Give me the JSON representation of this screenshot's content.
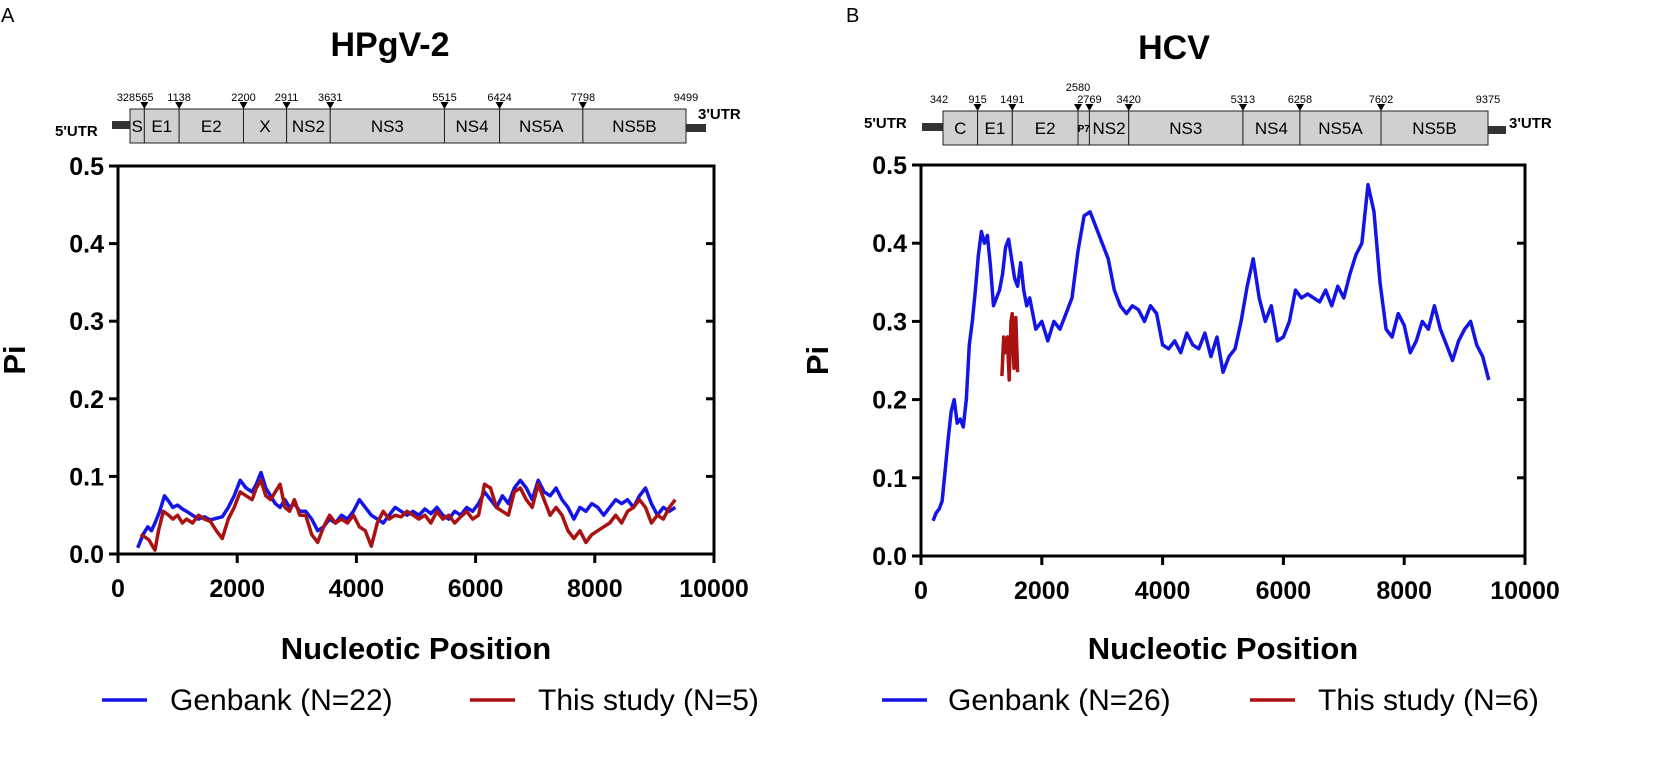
{
  "colors": {
    "genbank": "#1414e6",
    "this_study": "#aa1111",
    "gene_fill": "#d0d0d0",
    "utr": "#333333"
  },
  "chart_data": [
    {
      "panel": "A",
      "title": "HPgV-2",
      "type": "line",
      "xlabel": "Nucleotic Position",
      "ylabel": "Pi",
      "xlim": [
        0,
        10000
      ],
      "ylim": [
        0,
        0.5
      ],
      "xticks": [
        0,
        2000,
        4000,
        6000,
        8000,
        10000
      ],
      "yticks": [
        0.0,
        0.1,
        0.2,
        0.3,
        0.4,
        0.5
      ],
      "xtick_labels": [
        "0",
        "2000",
        "4000",
        "6000",
        "8000",
        "10000"
      ],
      "ytick_labels": [
        "0.0",
        "0.1",
        "0.2",
        "0.3",
        "0.4",
        "0.5"
      ],
      "genome": {
        "utr5": "5'UTR",
        "utr3": "3'UTR",
        "start": 328,
        "end": 9499,
        "genes": [
          {
            "label": "S",
            "start": 328,
            "end": 565
          },
          {
            "label": "E1",
            "start": 565,
            "end": 1138
          },
          {
            "label": "E2",
            "start": 1138,
            "end": 2200
          },
          {
            "label": "X",
            "start": 2200,
            "end": 2911
          },
          {
            "label": "NS2",
            "start": 2911,
            "end": 3631
          },
          {
            "label": "NS3",
            "start": 3631,
            "end": 5515
          },
          {
            "label": "NS4",
            "start": 5515,
            "end": 6424
          },
          {
            "label": "NS5A",
            "start": 6424,
            "end": 7798
          },
          {
            "label": "NS5B",
            "start": 7798,
            "end": 9499
          }
        ],
        "positions": [
          {
            "label": "328",
            "pos": 328,
            "marker": false
          },
          {
            "label": "565",
            "pos": 565,
            "marker": true
          },
          {
            "label": "1138",
            "pos": 1138,
            "marker": true
          },
          {
            "label": "2200",
            "pos": 2200,
            "marker": true
          },
          {
            "label": "2911",
            "pos": 2911,
            "marker": true
          },
          {
            "label": "3631",
            "pos": 3631,
            "marker": true
          },
          {
            "label": "5515",
            "pos": 5515,
            "marker": true
          },
          {
            "label": "6424",
            "pos": 6424,
            "marker": true
          },
          {
            "label": "7798",
            "pos": 7798,
            "marker": true
          },
          {
            "label": "9499",
            "pos": 9499,
            "marker": false
          }
        ]
      },
      "series": [
        {
          "name": "Genbank (N=22)",
          "color": "#1414e6",
          "x": [
            330,
            420,
            500,
            560,
            620,
            700,
            780,
            850,
            920,
            1000,
            1080,
            1150,
            1250,
            1350,
            1450,
            1550,
            1650,
            1750,
            1850,
            1950,
            2050,
            2150,
            2250,
            2320,
            2400,
            2480,
            2560,
            2640,
            2720,
            2800,
            2880,
            2960,
            3050,
            3150,
            3250,
            3350,
            3450,
            3550,
            3650,
            3750,
            3850,
            3950,
            4050,
            4150,
            4250,
            4350,
            4450,
            4550,
            4650,
            4750,
            4850,
            4950,
            5050,
            5150,
            5250,
            5350,
            5450,
            5550,
            5650,
            5750,
            5850,
            5950,
            6050,
            6150,
            6250,
            6350,
            6450,
            6550,
            6650,
            6750,
            6850,
            6950,
            7050,
            7150,
            7250,
            7350,
            7450,
            7550,
            7650,
            7750,
            7850,
            7950,
            8050,
            8150,
            8250,
            8350,
            8450,
            8550,
            8650,
            8750,
            8850,
            8950,
            9050,
            9150,
            9250,
            9350
          ],
          "y": [
            0.008,
            0.025,
            0.035,
            0.03,
            0.04,
            0.055,
            0.075,
            0.068,
            0.06,
            0.063,
            0.058,
            0.055,
            0.05,
            0.045,
            0.048,
            0.044,
            0.046,
            0.048,
            0.06,
            0.075,
            0.095,
            0.085,
            0.08,
            0.09,
            0.105,
            0.085,
            0.075,
            0.065,
            0.06,
            0.07,
            0.06,
            0.065,
            0.055,
            0.055,
            0.045,
            0.03,
            0.035,
            0.045,
            0.04,
            0.05,
            0.045,
            0.055,
            0.07,
            0.06,
            0.05,
            0.045,
            0.04,
            0.05,
            0.06,
            0.055,
            0.05,
            0.055,
            0.05,
            0.058,
            0.052,
            0.06,
            0.05,
            0.045,
            0.055,
            0.05,
            0.06,
            0.055,
            0.065,
            0.08,
            0.07,
            0.06,
            0.075,
            0.065,
            0.085,
            0.095,
            0.085,
            0.07,
            0.095,
            0.08,
            0.075,
            0.085,
            0.07,
            0.06,
            0.045,
            0.06,
            0.055,
            0.065,
            0.06,
            0.05,
            0.06,
            0.07,
            0.065,
            0.07,
            0.06,
            0.075,
            0.085,
            0.065,
            0.05,
            0.06,
            0.055,
            0.06
          ]
        },
        {
          "name": "This study (N=5)",
          "color": "#aa1111",
          "x": [
            380,
            450,
            520,
            580,
            620,
            680,
            760,
            850,
            920,
            1000,
            1080,
            1150,
            1250,
            1350,
            1450,
            1550,
            1650,
            1750,
            1850,
            1950,
            2050,
            2150,
            2250,
            2320,
            2400,
            2480,
            2560,
            2640,
            2720,
            2800,
            2880,
            2960,
            3050,
            3150,
            3250,
            3350,
            3450,
            3550,
            3650,
            3750,
            3850,
            3950,
            4050,
            4150,
            4250,
            4350,
            4450,
            4550,
            4650,
            4750,
            4850,
            4950,
            5050,
            5150,
            5250,
            5350,
            5450,
            5550,
            5650,
            5750,
            5850,
            5950,
            6050,
            6150,
            6250,
            6350,
            6450,
            6550,
            6650,
            6750,
            6850,
            6950,
            7050,
            7150,
            7250,
            7350,
            7450,
            7550,
            7650,
            7750,
            7850,
            7950,
            8050,
            8150,
            8250,
            8350,
            8450,
            8550,
            8650,
            8750,
            8850,
            8950,
            9050,
            9150,
            9250,
            9350
          ],
          "y": [
            0.025,
            0.022,
            0.018,
            0.01,
            0.005,
            0.03,
            0.055,
            0.05,
            0.045,
            0.05,
            0.04,
            0.045,
            0.04,
            0.05,
            0.045,
            0.042,
            0.03,
            0.02,
            0.045,
            0.06,
            0.08,
            0.075,
            0.07,
            0.085,
            0.095,
            0.075,
            0.07,
            0.08,
            0.09,
            0.06,
            0.055,
            0.07,
            0.05,
            0.05,
            0.025,
            0.015,
            0.035,
            0.05,
            0.04,
            0.045,
            0.04,
            0.05,
            0.035,
            0.03,
            0.01,
            0.04,
            0.055,
            0.045,
            0.05,
            0.048,
            0.055,
            0.05,
            0.045,
            0.05,
            0.04,
            0.055,
            0.045,
            0.05,
            0.04,
            0.048,
            0.055,
            0.045,
            0.05,
            0.09,
            0.085,
            0.06,
            0.055,
            0.05,
            0.08,
            0.085,
            0.07,
            0.06,
            0.09,
            0.07,
            0.05,
            0.06,
            0.05,
            0.03,
            0.02,
            0.03,
            0.015,
            0.025,
            0.03,
            0.035,
            0.04,
            0.05,
            0.04,
            0.055,
            0.06,
            0.07,
            0.06,
            0.04,
            0.05,
            0.045,
            0.06,
            0.07
          ]
        }
      ]
    },
    {
      "panel": "B",
      "title": "HCV",
      "type": "line",
      "xlabel": "Nucleotic Position",
      "ylabel": "Pi",
      "xlim": [
        0,
        10000
      ],
      "ylim": [
        0,
        0.5
      ],
      "xticks": [
        0,
        2000,
        4000,
        6000,
        8000,
        10000
      ],
      "yticks": [
        0.0,
        0.1,
        0.2,
        0.3,
        0.4,
        0.5
      ],
      "xtick_labels": [
        "0",
        "2000",
        "4000",
        "6000",
        "8000",
        "10000"
      ],
      "ytick_labels": [
        "0.0",
        "0.1",
        "0.2",
        "0.3",
        "0.4",
        "0.5"
      ],
      "genome": {
        "utr5": "5'UTR",
        "utr3": "3'UTR",
        "start": 342,
        "end": 9375,
        "genes": [
          {
            "label": "C",
            "start": 342,
            "end": 915
          },
          {
            "label": "E1",
            "start": 915,
            "end": 1491
          },
          {
            "label": "E2",
            "start": 1491,
            "end": 2580
          },
          {
            "label": "P7",
            "start": 2580,
            "end": 2769,
            "small": true
          },
          {
            "label": "NS2",
            "start": 2769,
            "end": 3420
          },
          {
            "label": "NS3",
            "start": 3420,
            "end": 5313
          },
          {
            "label": "NS4",
            "start": 5313,
            "end": 6258
          },
          {
            "label": "NS5A",
            "start": 6258,
            "end": 7602
          },
          {
            "label": "NS5B",
            "start": 7602,
            "end": 9375
          }
        ],
        "positions": [
          {
            "label": "342",
            "pos": 342,
            "marker": false
          },
          {
            "label": "915",
            "pos": 915,
            "marker": true
          },
          {
            "label": "1491",
            "pos": 1491,
            "marker": true
          },
          {
            "label": "2580",
            "pos": 2580,
            "marker": true,
            "raised": true
          },
          {
            "label": "2769",
            "pos": 2769,
            "marker": true
          },
          {
            "label": "3420",
            "pos": 3420,
            "marker": true
          },
          {
            "label": "5313",
            "pos": 5313,
            "marker": true
          },
          {
            "label": "6258",
            "pos": 6258,
            "marker": true
          },
          {
            "label": "7602",
            "pos": 7602,
            "marker": true
          },
          {
            "label": "9375",
            "pos": 9375,
            "marker": false
          }
        ]
      },
      "series": [
        {
          "name": "Genbank (N=26)",
          "color": "#1414e6",
          "x": [
            200,
            250,
            300,
            350,
            400,
            450,
            500,
            550,
            600,
            650,
            700,
            750,
            800,
            850,
            900,
            950,
            1000,
            1050,
            1100,
            1150,
            1200,
            1250,
            1300,
            1350,
            1400,
            1450,
            1500,
            1550,
            1600,
            1650,
            1700,
            1750,
            1800,
            1900,
            2000,
            2100,
            2200,
            2300,
            2400,
            2500,
            2600,
            2700,
            2800,
            2900,
            3000,
            3100,
            3200,
            3300,
            3400,
            3500,
            3600,
            3700,
            3800,
            3900,
            4000,
            4100,
            4200,
            4300,
            4400,
            4500,
            4600,
            4700,
            4800,
            4900,
            5000,
            5100,
            5200,
            5300,
            5400,
            5500,
            5600,
            5700,
            5800,
            5900,
            6000,
            6100,
            6200,
            6300,
            6400,
            6500,
            6600,
            6700,
            6800,
            6900,
            7000,
            7100,
            7200,
            7300,
            7400,
            7500,
            7600,
            7700,
            7800,
            7900,
            8000,
            8100,
            8200,
            8300,
            8400,
            8500,
            8600,
            8700,
            8800,
            8900,
            9000,
            9100,
            9200,
            9300,
            9400
          ],
          "y": [
            0.045,
            0.055,
            0.06,
            0.07,
            0.11,
            0.15,
            0.185,
            0.2,
            0.17,
            0.175,
            0.165,
            0.2,
            0.27,
            0.3,
            0.34,
            0.385,
            0.415,
            0.4,
            0.41,
            0.37,
            0.32,
            0.33,
            0.34,
            0.36,
            0.395,
            0.405,
            0.38,
            0.355,
            0.345,
            0.375,
            0.34,
            0.32,
            0.33,
            0.29,
            0.3,
            0.275,
            0.3,
            0.29,
            0.31,
            0.33,
            0.39,
            0.435,
            0.44,
            0.42,
            0.4,
            0.38,
            0.34,
            0.32,
            0.31,
            0.32,
            0.315,
            0.3,
            0.32,
            0.31,
            0.27,
            0.265,
            0.275,
            0.26,
            0.285,
            0.27,
            0.265,
            0.285,
            0.255,
            0.28,
            0.235,
            0.255,
            0.265,
            0.3,
            0.345,
            0.38,
            0.33,
            0.3,
            0.32,
            0.275,
            0.28,
            0.3,
            0.34,
            0.33,
            0.335,
            0.33,
            0.325,
            0.34,
            0.32,
            0.345,
            0.33,
            0.36,
            0.385,
            0.4,
            0.475,
            0.44,
            0.35,
            0.29,
            0.28,
            0.31,
            0.295,
            0.26,
            0.275,
            0.3,
            0.29,
            0.32,
            0.29,
            0.27,
            0.25,
            0.275,
            0.29,
            0.3,
            0.27,
            0.255,
            0.225
          ]
        },
        {
          "name": "This study (N=6)",
          "color": "#aa1111",
          "x": [
            1340,
            1370,
            1400,
            1430,
            1460,
            1490,
            1510,
            1540,
            1570,
            1600
          ],
          "y": [
            0.23,
            0.28,
            0.26,
            0.28,
            0.225,
            0.3,
            0.31,
            0.24,
            0.305,
            0.235
          ]
        }
      ]
    }
  ]
}
